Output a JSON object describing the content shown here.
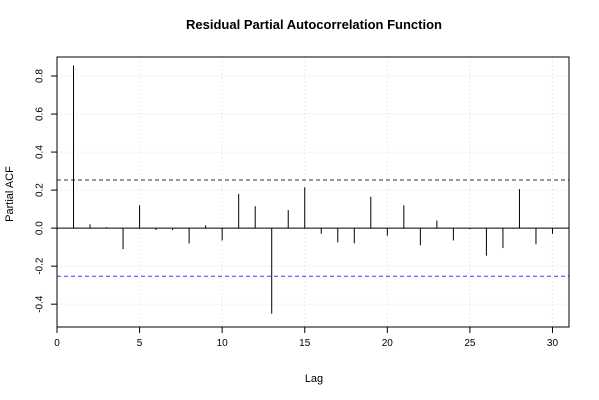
{
  "chart_data": {
    "type": "bar",
    "title": "Residual Partial Autocorrelation Function",
    "xlabel": "Lag",
    "ylabel": "Partial ACF",
    "xlim": [
      0,
      31
    ],
    "ylim": [
      -0.52,
      0.9
    ],
    "x_ticks": [
      "0",
      "5",
      "10",
      "15",
      "20",
      "25",
      "30"
    ],
    "y_ticks": [
      "-0.4",
      "-0.2",
      "0.0",
      "0.2",
      "0.4",
      "0.6",
      "0.8"
    ],
    "grid": true,
    "lags": [
      1,
      2,
      3,
      4,
      5,
      6,
      7,
      8,
      9,
      10,
      11,
      12,
      13,
      14,
      15,
      16,
      17,
      18,
      19,
      20,
      21,
      22,
      23,
      24,
      25,
      26,
      27,
      28,
      29,
      30
    ],
    "values": [
      0.855,
      0.02,
      0.005,
      -0.11,
      0.12,
      -0.01,
      -0.01,
      -0.08,
      0.015,
      -0.065,
      0.18,
      0.115,
      -0.45,
      0.095,
      0.215,
      -0.03,
      -0.075,
      -0.08,
      0.165,
      -0.04,
      0.12,
      -0.09,
      0.04,
      -0.065,
      -0.005,
      -0.145,
      -0.105,
      0.205,
      -0.085,
      -0.03
    ],
    "confidence_bounds": [
      0.253,
      -0.253
    ],
    "colors": {
      "bars": "#000000",
      "upper_bound": "#333333",
      "lower_bound": "#3a3aff",
      "grid": "#d9d9d9"
    }
  }
}
